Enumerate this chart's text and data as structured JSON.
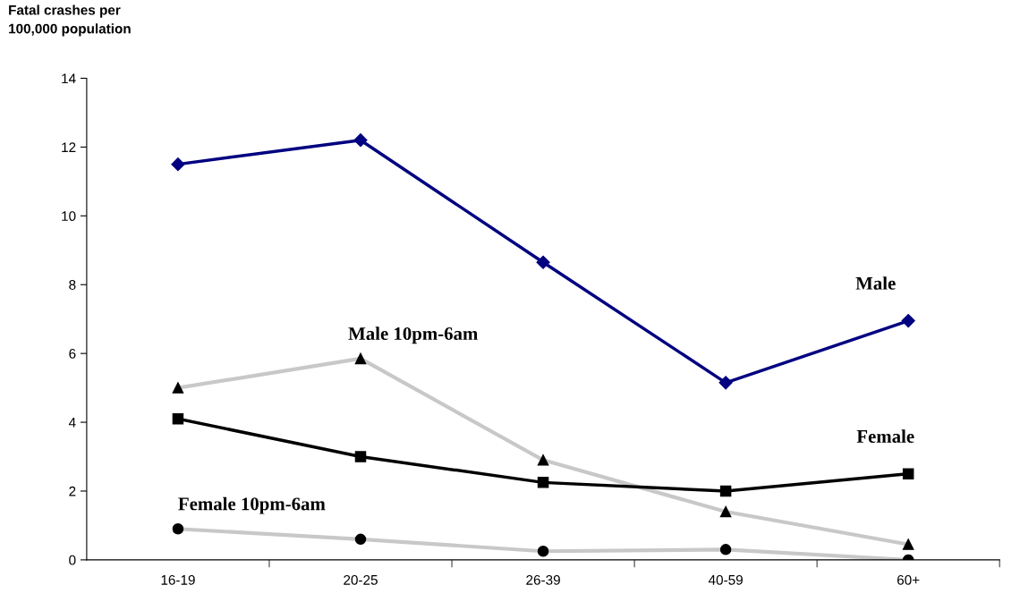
{
  "chart_data": {
    "type": "line",
    "ylabel": "Fatal crashes per\n100,000 population",
    "categories": [
      "16-19",
      "20-25",
      "26-39",
      "40-59",
      "60+"
    ],
    "ylim": [
      0,
      14
    ],
    "yticks": [
      0,
      2,
      4,
      6,
      8,
      10,
      12,
      14
    ],
    "grid": false,
    "legend": false,
    "series": [
      {
        "name": "Male",
        "color": "#000080",
        "marker": "diamond",
        "values": [
          11.5,
          12.2,
          8.65,
          5.15,
          6.95
        ]
      },
      {
        "name": "Male 10pm-6am",
        "color": "#c8c8c8",
        "marker": "triangle",
        "values": [
          5.0,
          5.85,
          2.9,
          1.4,
          0.45
        ]
      },
      {
        "name": "Female",
        "color": "#000000",
        "marker": "square",
        "values": [
          4.1,
          3.0,
          2.25,
          2.0,
          2.5
        ]
      },
      {
        "name": "Female 10pm-6am",
        "color": "#c8c8c8",
        "marker": "circle",
        "values": [
          0.9,
          0.6,
          0.25,
          0.3,
          0.0
        ]
      }
    ]
  }
}
